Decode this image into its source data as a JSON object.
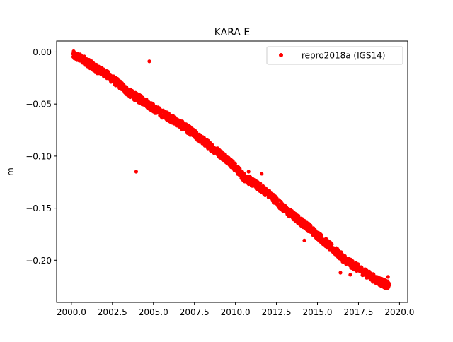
{
  "chart_data": {
    "type": "scatter",
    "title": "KARA E",
    "xlabel": "",
    "ylabel": "m",
    "xlim": [
      1999.1,
      2020.5
    ],
    "ylim": [
      -0.2405,
      0.0105
    ],
    "x_ticks": [
      2000.0,
      2002.5,
      2005.0,
      2007.5,
      2010.0,
      2012.5,
      2015.0,
      2017.5,
      2020.0
    ],
    "x_tick_labels": [
      "2000.0",
      "2002.5",
      "2005.0",
      "2007.5",
      "2010.0",
      "2012.5",
      "2015.0",
      "2017.5",
      "2020.0"
    ],
    "y_ticks": [
      0.0,
      -0.05,
      -0.1,
      -0.15,
      -0.2
    ],
    "y_tick_labels": [
      "0.00",
      "−0.05",
      "−0.10",
      "−0.15",
      "−0.20"
    ],
    "grid": false,
    "legend_position": "top-right",
    "series": [
      {
        "name": "repro2018a (IGS14)",
        "color": "#ff0000",
        "marker": "circle",
        "trend": [
          [
            2000.1,
            -0.003
          ],
          [
            2000.8,
            -0.008
          ],
          [
            2001.5,
            -0.016
          ],
          [
            2002.0,
            -0.02
          ],
          [
            2002.5,
            -0.026
          ],
          [
            2003.0,
            -0.032
          ],
          [
            2003.5,
            -0.039
          ],
          [
            2004.0,
            -0.044
          ],
          [
            2004.5,
            -0.048
          ],
          [
            2005.0,
            -0.054
          ],
          [
            2005.5,
            -0.059
          ],
          [
            2006.0,
            -0.063
          ],
          [
            2006.5,
            -0.068
          ],
          [
            2007.0,
            -0.073
          ],
          [
            2007.5,
            -0.079
          ],
          [
            2008.0,
            -0.085
          ],
          [
            2008.5,
            -0.091
          ],
          [
            2009.0,
            -0.097
          ],
          [
            2009.5,
            -0.103
          ],
          [
            2010.0,
            -0.111
          ],
          [
            2010.5,
            -0.12
          ],
          [
            2011.0,
            -0.125
          ],
          [
            2011.5,
            -0.13
          ],
          [
            2012.0,
            -0.136
          ],
          [
            2012.5,
            -0.143
          ],
          [
            2013.0,
            -0.151
          ],
          [
            2013.5,
            -0.157
          ],
          [
            2014.0,
            -0.163
          ],
          [
            2014.5,
            -0.169
          ],
          [
            2015.0,
            -0.176
          ],
          [
            2015.5,
            -0.183
          ],
          [
            2016.0,
            -0.19
          ],
          [
            2016.5,
            -0.197
          ],
          [
            2017.0,
            -0.203
          ],
          [
            2017.5,
            -0.208
          ],
          [
            2018.0,
            -0.213
          ],
          [
            2018.5,
            -0.218
          ],
          [
            2019.0,
            -0.222
          ],
          [
            2019.4,
            -0.225
          ]
        ],
        "spread": 0.004,
        "outliers": [
          [
            2003.95,
            -0.115
          ],
          [
            2004.75,
            -0.009
          ],
          [
            2011.6,
            -0.117
          ],
          [
            2010.8,
            -0.115
          ],
          [
            2014.2,
            -0.181
          ],
          [
            2016.4,
            -0.212
          ],
          [
            2017.0,
            -0.214
          ],
          [
            2019.3,
            -0.216
          ]
        ]
      }
    ]
  }
}
